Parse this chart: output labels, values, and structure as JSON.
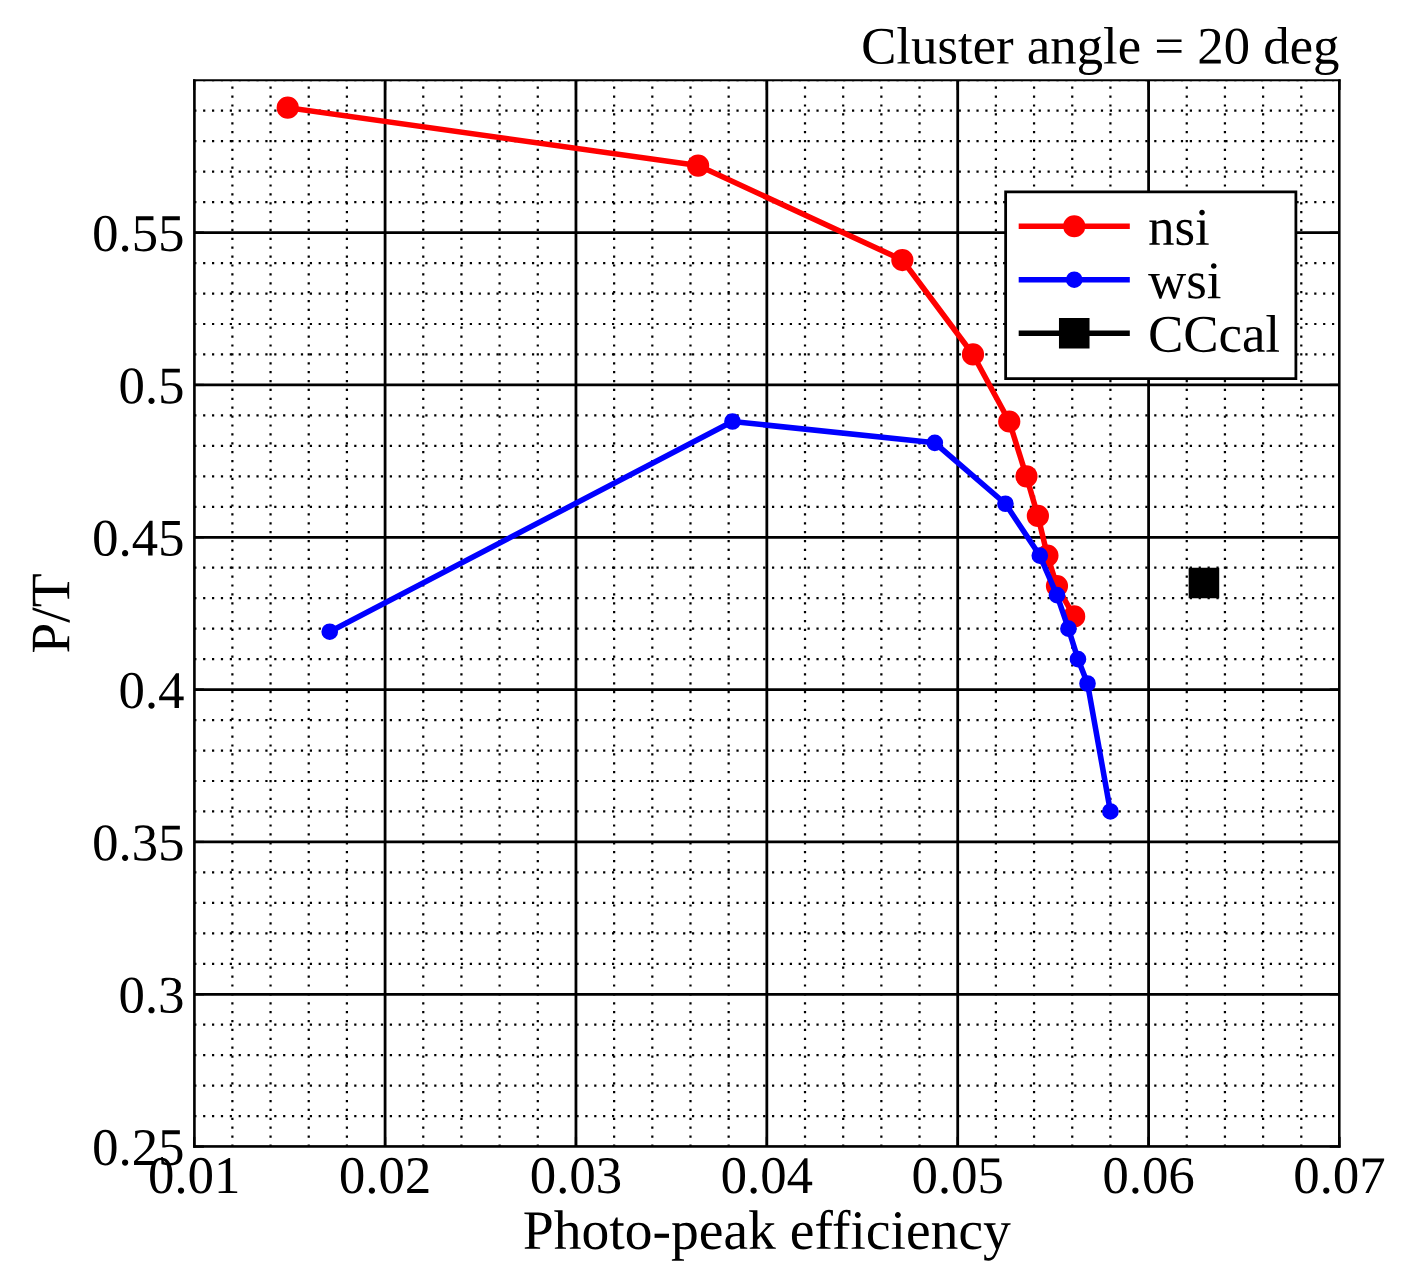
{
  "chart_data": {
    "type": "line",
    "title": "Cluster angle = 20 deg",
    "xlabel": "Photo-peak efficiency",
    "ylabel": "P/T",
    "xlim": [
      0.01,
      0.07
    ],
    "xticks": [
      0.01,
      0.02,
      0.03,
      0.04,
      0.05,
      0.06,
      0.07
    ],
    "ylim": [
      0.25,
      0.6
    ],
    "yticks": [
      0.25,
      0.3,
      0.35,
      0.4,
      0.45,
      0.5,
      0.55
    ],
    "grid": true,
    "legend": "top right",
    "marker": "circle",
    "series": [
      {
        "name": "nsi",
        "color": "#ff0000",
        "x": [
          0.0149,
          0.0364,
          0.0471,
          0.0508,
          0.0527,
          0.0536,
          0.0542,
          0.0547,
          0.0552,
          0.0561
        ],
        "values": [
          0.591,
          0.572,
          0.541,
          0.51,
          0.488,
          0.47,
          0.457,
          0.444,
          0.434,
          0.424
        ]
      },
      {
        "name": "wsi",
        "color": "#0000ff",
        "x": [
          0.0171,
          0.0382,
          0.0488,
          0.0525,
          0.0543,
          0.0552,
          0.0558,
          0.0563,
          0.0568,
          0.058
        ],
        "values": [
          0.419,
          0.488,
          0.481,
          0.461,
          0.444,
          0.431,
          0.42,
          0.41,
          0.402,
          0.36
        ]
      },
      {
        "name": "CCcal",
        "color": "#000000",
        "marker": "square",
        "x": [
          0.0629
        ],
        "values": [
          0.435
        ]
      }
    ]
  }
}
